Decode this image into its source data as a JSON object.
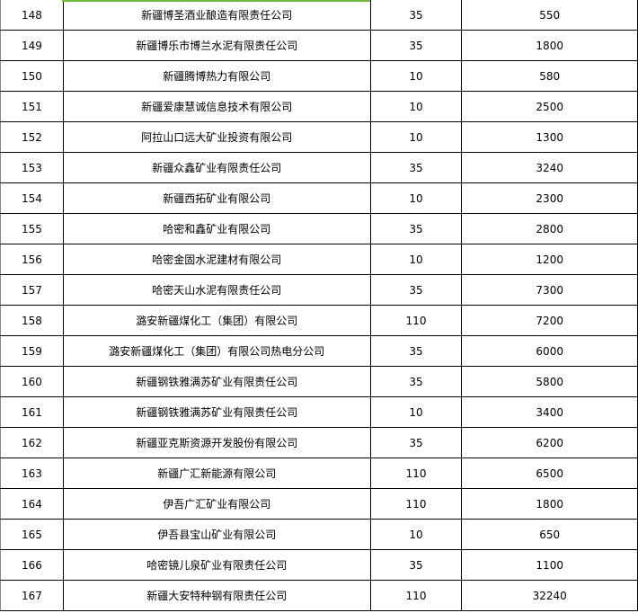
{
  "colors": {
    "grid": "#000000",
    "selection": "#6dbb3c"
  },
  "rows": [
    {
      "no": "148",
      "company": "新疆博圣酒业酿造有限责任公司",
      "voltage": "35",
      "capacity": "550"
    },
    {
      "no": "149",
      "company": "新疆博乐市博兰水泥有限责任公司",
      "voltage": "35",
      "capacity": "1800"
    },
    {
      "no": "150",
      "company": "新疆腾博热力有限公司",
      "voltage": "10",
      "capacity": "580"
    },
    {
      "no": "151",
      "company": "新疆爱康慧诚信息技术有限公司",
      "voltage": "10",
      "capacity": "2500"
    },
    {
      "no": "152",
      "company": "阿拉山口远大矿业投资有限公司",
      "voltage": "10",
      "capacity": "1300"
    },
    {
      "no": "153",
      "company": "新疆众鑫矿业有限责任公司",
      "voltage": "35",
      "capacity": "3240"
    },
    {
      "no": "154",
      "company": "新疆西拓矿业有限公司",
      "voltage": "10",
      "capacity": "2300"
    },
    {
      "no": "155",
      "company": "哈密和鑫矿业有限公司",
      "voltage": "35",
      "capacity": "2800"
    },
    {
      "no": "156",
      "company": "哈密金固水泥建材有限公司",
      "voltage": "10",
      "capacity": "1200"
    },
    {
      "no": "157",
      "company": "哈密天山水泥有限责任公司",
      "voltage": "35",
      "capacity": "7300"
    },
    {
      "no": "158",
      "company": "潞安新疆煤化工（集团）有限公司",
      "voltage": "110",
      "capacity": "7200"
    },
    {
      "no": "159",
      "company": "潞安新疆煤化工（集团）有限公司热电分公司",
      "voltage": "35",
      "capacity": "6000"
    },
    {
      "no": "160",
      "company": "新疆钢铁雅满苏矿业有限责任公司",
      "voltage": "35",
      "capacity": "5800"
    },
    {
      "no": "161",
      "company": "新疆钢铁雅满苏矿业有限责任公司",
      "voltage": "10",
      "capacity": "3400"
    },
    {
      "no": "162",
      "company": "新疆亚克斯资源开发股份有限公司",
      "voltage": "35",
      "capacity": "6200"
    },
    {
      "no": "163",
      "company": "新疆广汇新能源有限公司",
      "voltage": "110",
      "capacity": "6500"
    },
    {
      "no": "164",
      "company": "伊吾广汇矿业有限公司",
      "voltage": "110",
      "capacity": "1800"
    },
    {
      "no": "165",
      "company": "伊吾县宝山矿业有限公司",
      "voltage": "10",
      "capacity": "650"
    },
    {
      "no": "166",
      "company": "哈密镜儿泉矿业有限责任公司",
      "voltage": "35",
      "capacity": "1100"
    },
    {
      "no": "167",
      "company": "新疆大安特种钢有限责任公司",
      "voltage": "110",
      "capacity": "32240"
    }
  ]
}
